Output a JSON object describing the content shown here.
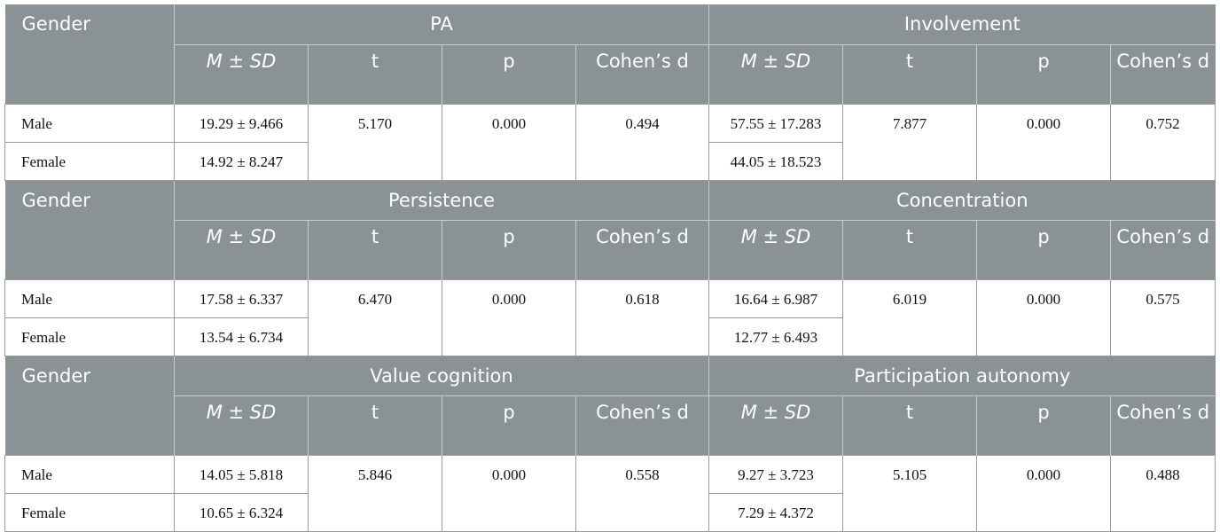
{
  "blocks": [
    {
      "first_column": "Gender",
      "row_labels": [
        "Male",
        "Female"
      ],
      "groups": [
        {
          "name": "PA",
          "columns": [
            "M ± SD",
            "t",
            "p",
            "Cohen’s d"
          ],
          "male": "19.29 ± 9.466",
          "female": "14.92 ± 8.247",
          "t": "5.170",
          "p": "0.000",
          "d": "0.494"
        },
        {
          "name": "Involvement",
          "columns": [
            "M ± SD",
            "t",
            "p",
            "Cohen’s d"
          ],
          "male": "57.55 ± 17.283",
          "female": "44.05 ± 18.523",
          "t": "7.877",
          "p": "0.000",
          "d": "0.752"
        }
      ]
    },
    {
      "first_column": "Gender",
      "row_labels": [
        "Male",
        "Female"
      ],
      "groups": [
        {
          "name": "Persistence",
          "columns": [
            "M ± SD",
            "t",
            "p",
            "Cohen’s d"
          ],
          "male": "17.58 ± 6.337",
          "female": "13.54 ± 6.734",
          "t": "6.470",
          "p": "0.000",
          "d": "0.618"
        },
        {
          "name": "Concentration",
          "columns": [
            "M ± SD",
            "t",
            "p",
            "Cohen’s d"
          ],
          "male": "16.64 ± 6.987",
          "female": "12.77 ± 6.493",
          "t": "6.019",
          "p": "0.000",
          "d": "0.575"
        }
      ]
    },
    {
      "first_column": "Gender",
      "row_labels": [
        "Male",
        "Female"
      ],
      "groups": [
        {
          "name": "Value cognition",
          "columns": [
            "M ± SD",
            "t",
            "p",
            "Cohen’s d"
          ],
          "male": "14.05 ± 5.818",
          "female": "10.65 ± 6.324",
          "t": "5.846",
          "p": "0.000",
          "d": "0.558"
        },
        {
          "name": "Participation autonomy",
          "columns": [
            "M ± SD",
            "t",
            "p",
            "Cohen’s d"
          ],
          "male": "9.27 ± 3.723",
          "female": "7.29 ± 4.372",
          "t": "5.105",
          "p": "0.000",
          "d": "0.488"
        }
      ]
    }
  ]
}
